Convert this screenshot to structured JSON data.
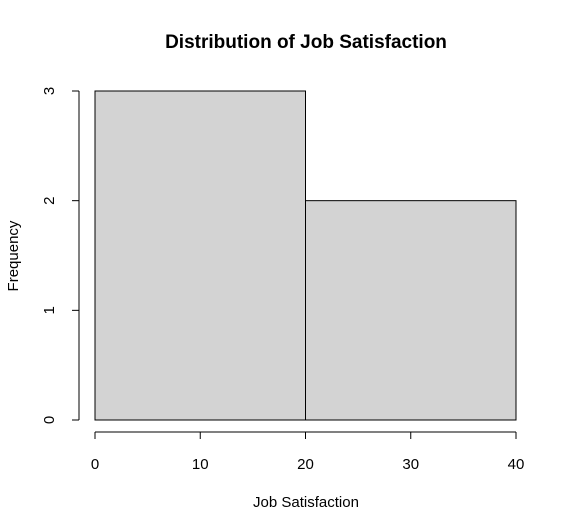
{
  "chart_data": {
    "type": "bar",
    "title": "Distribution of Job Satisfaction",
    "xlabel": "Job Satisfaction",
    "ylabel": "Frequency",
    "bins": [
      {
        "start": 0,
        "end": 20,
        "value": 3
      },
      {
        "start": 20,
        "end": 40,
        "value": 2
      }
    ],
    "xlim": [
      0,
      40
    ],
    "ylim": [
      0,
      3
    ],
    "x_ticks": [
      0,
      10,
      20,
      30,
      40
    ],
    "y_ticks": [
      0,
      1,
      2,
      3
    ],
    "grid": false,
    "bar_color": "#d3d3d3",
    "edge_color": "#000000"
  }
}
